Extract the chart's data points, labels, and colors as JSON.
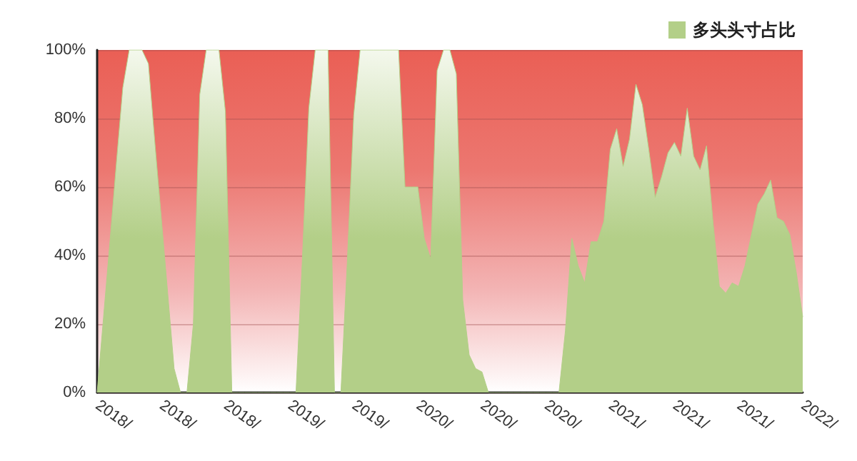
{
  "chart_data": {
    "type": "area",
    "categories": [
      "2018/",
      null,
      null,
      null,
      null,
      null,
      null,
      null,
      null,
      null,
      "2018/",
      null,
      null,
      null,
      null,
      null,
      null,
      null,
      null,
      null,
      "2018/",
      null,
      null,
      null,
      null,
      null,
      null,
      null,
      null,
      null,
      "2019/",
      null,
      null,
      null,
      null,
      null,
      null,
      null,
      null,
      null,
      "2019/",
      null,
      null,
      null,
      null,
      null,
      null,
      null,
      null,
      null,
      "2020/",
      null,
      null,
      null,
      null,
      null,
      null,
      null,
      null,
      null,
      "2020/",
      null,
      null,
      null,
      null,
      null,
      null,
      null,
      null,
      null,
      "2020/",
      null,
      null,
      null,
      null,
      null,
      null,
      null,
      null,
      null,
      "2021/",
      null,
      null,
      null,
      null,
      null,
      null,
      null,
      null,
      null,
      "2021/",
      null,
      null,
      null,
      null,
      null,
      null,
      null,
      null,
      null,
      "2021/",
      null,
      null,
      null,
      null,
      null,
      null,
      null,
      null,
      null,
      "2022/"
    ],
    "series": [
      {
        "name": "多头头寸占比",
        "color": "#b3cf88",
        "values": [
          0,
          22,
          44,
          67,
          89,
          100,
          100,
          100,
          96,
          73,
          51,
          29,
          7,
          0,
          0,
          20,
          87,
          100,
          100,
          100,
          82,
          0,
          0,
          0,
          0,
          0,
          0,
          0,
          0,
          0,
          0,
          0,
          39,
          83,
          100,
          100,
          100,
          0,
          0,
          38,
          81,
          100,
          100,
          100,
          100,
          100,
          100,
          100,
          60,
          60,
          60,
          45,
          39,
          94,
          100,
          100,
          93,
          27,
          11,
          7,
          6,
          0,
          0,
          0,
          0,
          0,
          0,
          0,
          0,
          0,
          0,
          0,
          0,
          18,
          45,
          37,
          32,
          44,
          44,
          50,
          71,
          77,
          66,
          74,
          90,
          84,
          71,
          57,
          63,
          70,
          73,
          69,
          83,
          69,
          65,
          72,
          50,
          31,
          29,
          32,
          31,
          37,
          46,
          55,
          58,
          62,
          51,
          50,
          46,
          35,
          22
        ]
      }
    ],
    "ylim": [
      0,
      100
    ],
    "yticks": [
      {
        "value": 0,
        "label": "0%"
      },
      {
        "value": 20,
        "label": "20%"
      },
      {
        "value": 40,
        "label": "40%"
      },
      {
        "value": 60,
        "label": "60%"
      },
      {
        "value": 80,
        "label": "80%"
      },
      {
        "value": 100,
        "label": "100%"
      }
    ],
    "grid": "y",
    "legend": "top right",
    "marker": "none"
  }
}
